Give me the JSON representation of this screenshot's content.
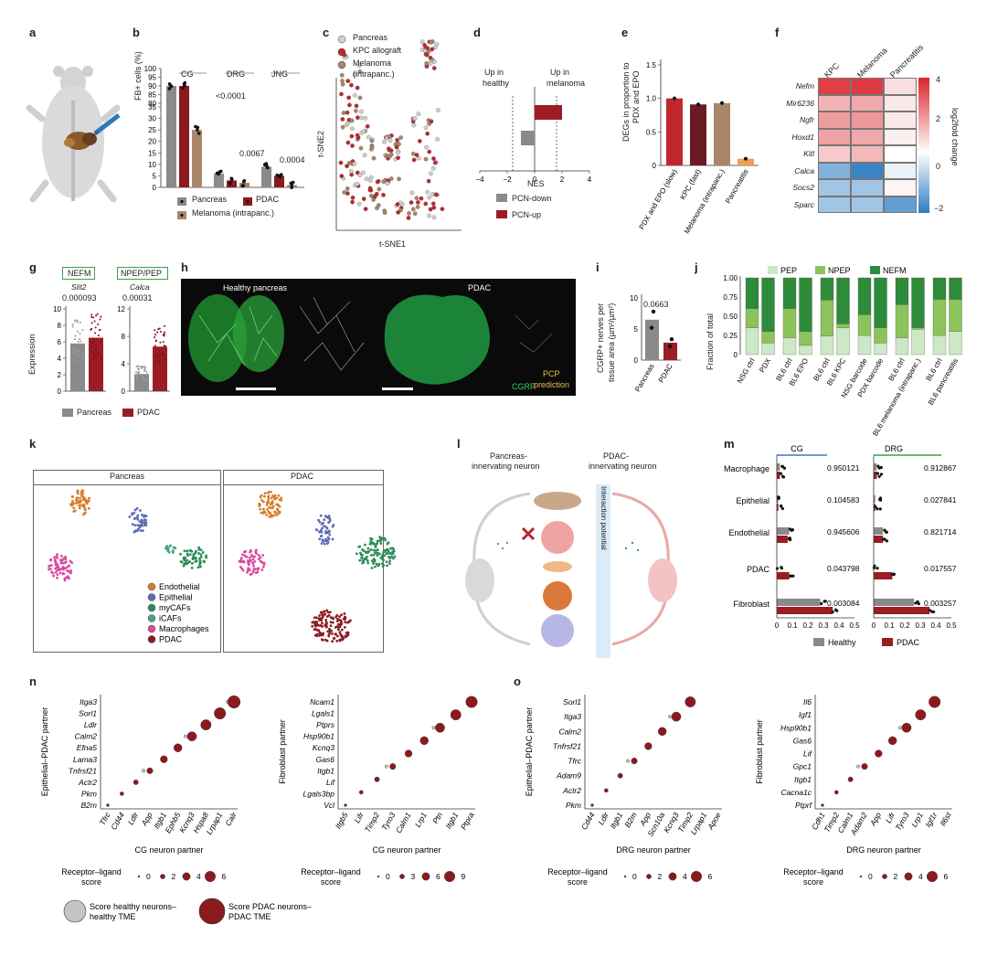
{
  "panel_letters": [
    "a",
    "b",
    "c",
    "d",
    "e",
    "f",
    "g",
    "h",
    "i",
    "j",
    "k",
    "l",
    "m",
    "n",
    "o"
  ],
  "colors": {
    "dark_red": "#8b1a1f",
    "red": "#c0272d",
    "grey": "#8a8a8a",
    "tan": "#a8866a",
    "orange": "#f0a050",
    "green_dark": "#2e8b3a",
    "green_mid": "#8cc35a",
    "green_light": "#cde8c6"
  },
  "panel_b": {
    "ylabel": "FB+ cells (%)",
    "groups": [
      "CG",
      "DRG",
      "JNG"
    ],
    "yticks": [
      "0",
      "5",
      "10",
      "15",
      "20",
      "25",
      "30",
      "35",
      "80",
      "85",
      "90",
      "95",
      "100"
    ],
    "pvals": [
      "<0.0001",
      "0.0067",
      "0.0004"
    ],
    "legend": [
      "Pancreas",
      "PDAC",
      "Melanoma (intrapanc.)"
    ]
  },
  "panel_c": {
    "xlabel": "t-SNE1",
    "ylabel": "t-SNE2",
    "legend": [
      "Pancreas",
      "KPC allograft",
      "Melanoma",
      "(intrapanc.)"
    ]
  },
  "panel_d": {
    "xlabel": "NES",
    "xticks": [
      "−4",
      "−2",
      "0",
      "2",
      "4"
    ],
    "left_label": [
      "Up in",
      "healthy"
    ],
    "right_label": [
      "Up in",
      "melanoma"
    ],
    "legend": [
      "PCN-down",
      "PCN-up"
    ]
  },
  "panel_e": {
    "ylabel": [
      "DEGs in proportion to",
      "PDX and EPO"
    ],
    "yticks": [
      "0",
      "0.5",
      "1.0",
      "1.5"
    ],
    "categories": [
      "PDX and EPO (slow)",
      "KPC (fast)",
      "Melanoma (intrapanc.)",
      "Pancreatitis"
    ]
  },
  "panel_f": {
    "columns": [
      "KPC",
      "Melanoma",
      "Pancreatitis"
    ],
    "rows": [
      "Nefm",
      "Mir6236",
      "Ngfr",
      "Hoxd1",
      "Kitl",
      "Calca",
      "Socs2",
      "Sparc"
    ],
    "scale_label": "log2fold change",
    "scale_ticks": [
      "4",
      "2",
      "0",
      "−2"
    ]
  },
  "panel_g": {
    "ylabel": "Expression",
    "left": {
      "box": "NEFM",
      "gene": "Slit2",
      "p": "0.000093",
      "yticks": [
        "0",
        "2",
        "4",
        "6",
        "8",
        "10"
      ]
    },
    "right": {
      "box": "NPEP/PEP",
      "gene": "Calca",
      "p": "0.00031",
      "yticks": [
        "0",
        "4",
        "8",
        "12"
      ]
    },
    "legend": [
      "Pancreas",
      "PDAC"
    ]
  },
  "panel_h": {
    "left_title": "Healthy pancreas",
    "right_title": "PDAC",
    "cgrp": "CGRP",
    "pcp": [
      "PCP",
      "prediction"
    ]
  },
  "panel_i": {
    "ylabel": [
      "CGRP+ nerves per",
      "tissue area (µm²/µm²)"
    ],
    "yticks": [
      "0",
      "5",
      "10"
    ],
    "p": "0.0663",
    "categories": [
      "Pancreas",
      "PDAC"
    ]
  },
  "panel_j": {
    "ylabel": "Fraction of total",
    "yticks": [
      "0",
      "0.25",
      "0.50",
      "0.75",
      "1.00"
    ],
    "legend": [
      "PEP",
      "NPEP",
      "NEFM"
    ],
    "categories": [
      "NSG ctrl",
      "PDX",
      "BL6 ctrl",
      "BL6 EPO",
      "BL6 ctrl",
      "BL6 KPC",
      "NSG barcode",
      "PDX barcode",
      "BL6 ctrl",
      "BL6 melanoma (intrapanc.)",
      "BL6 ctrl",
      "BL6 pancreatitis"
    ]
  },
  "panel_k": {
    "left_title": "Pancreas",
    "right_title": "PDAC",
    "legend": [
      "Endothelial",
      "Epithelial",
      "myCAFs",
      "iCAFs",
      "Macrophages",
      "PDAC"
    ]
  },
  "panel_l": {
    "left_title": [
      "Pancreas-",
      "innervating neuron"
    ],
    "right_title": [
      "PDAC-",
      "innervating neuron"
    ],
    "gradient": "Interaction potential"
  },
  "panel_m": {
    "headers": [
      "CG",
      "DRG"
    ],
    "rows": [
      "Macrophage",
      "Epithelial",
      "Endothelial",
      "PDAC",
      "Fibroblast"
    ],
    "cg_p": [
      "0.950121",
      "0.104583",
      "0.945606",
      "0.043798",
      "0.003084"
    ],
    "drg_p": [
      "0.912867",
      "0.027841",
      "0.821714",
      "0.017557",
      "0.003257"
    ],
    "xticks": [
      "0",
      "0.1",
      "0.2",
      "0.3",
      "0.4",
      "0.5"
    ],
    "legend": [
      "Healthy",
      "PDAC"
    ]
  },
  "panel_n": {
    "left": {
      "ylabel": "Epithelial–PDAC partner",
      "xlabel": "CG neuron partner",
      "y": [
        "Itga3",
        "Sorl1",
        "Ldlr",
        "Calm2",
        "Efna5",
        "Lama3",
        "Tnfrsf21",
        "Actr2",
        "Pkm",
        "B2m"
      ],
      "x": [
        "Tfrc",
        "Cd44",
        "Ldlr",
        "App",
        "Itgb1",
        "Ephb5",
        "Kcnq3",
        "Hspa8",
        "Lrpap1",
        "Calr"
      ],
      "score_label": [
        "Receptor–ligand",
        "score"
      ],
      "score_ticks": [
        "0",
        "2",
        "4",
        "6"
      ]
    },
    "right": {
      "ylabel": "Fibroblast partner",
      "xlabel": "CG neuron partner",
      "y": [
        "Ncam1",
        "Lgals1",
        "Ptprs",
        "Hsp90b1",
        "Kcnq3",
        "Gas6",
        "Itgb1",
        "Lif",
        "Lgals3bp",
        "Vcl"
      ],
      "x": [
        "Itgb5",
        "Lifr",
        "Timp2",
        "Tyro3",
        "Calm1",
        "Lrp1",
        "Ptn",
        "Itgb1",
        "Ptpra"
      ],
      "score_label": [
        "Receptor–ligand",
        "score"
      ],
      "score_ticks": [
        "0",
        "3",
        "6",
        "9"
      ]
    },
    "legend": [
      [
        "Score healthy neurons–",
        "healthy TME"
      ],
      [
        "Score PDAC neurons–",
        "PDAC TME"
      ]
    ]
  },
  "panel_o": {
    "left": {
      "ylabel": "Epithelial–PDAC partner",
      "xlabel": "DRG neuron partner",
      "y": [
        "Sorl1",
        "Itga3",
        "Calm2",
        "Tnfrsf21",
        "Tfrc",
        "Adam9",
        "Actr2",
        "Pkm"
      ],
      "x": [
        "Cd44",
        "Ldlr",
        "Itgb1",
        "B2m",
        "App",
        "Scn10a",
        "Kcnq3",
        "Timp2",
        "Lrpap1",
        "Apoe"
      ],
      "score_label": [
        "Receptor–ligand",
        "score"
      ],
      "score_ticks": [
        "0",
        "2",
        "4",
        "6"
      ]
    },
    "right": {
      "ylabel": "Fibroblast partner",
      "xlabel": "DRG neuron partner",
      "y": [
        "Il6",
        "Igf1",
        "Hsp90b1",
        "Gas6",
        "Lif",
        "Gpc1",
        "Itgb1",
        "Cacna1c",
        "Ptprf"
      ],
      "x": [
        "Cdh1",
        "Timp2",
        "Calm1",
        "Adam2",
        "App",
        "Lifr",
        "Tyro3",
        "Lrp1",
        "Igf1r",
        "Il6st"
      ],
      "score_label": [
        "Receptor–ligand",
        "score"
      ],
      "score_ticks": [
        "0",
        "2",
        "4",
        "6"
      ]
    }
  },
  "chart_data": [
    {
      "type": "bar",
      "panel": "b",
      "categories": [
        "CG",
        "DRG",
        "JNG"
      ],
      "series": [
        {
          "name": "Pancreas",
          "values": [
            90,
            6,
            9
          ]
        },
        {
          "name": "PDAC",
          "values": [
            90,
            3,
            5
          ]
        },
        {
          "name": "Melanoma (intrapanc.)",
          "values": [
            25,
            2,
            1
          ]
        }
      ]
    },
    {
      "type": "bar",
      "panel": "d",
      "categories": [
        "PCN-down",
        "PCN-up"
      ],
      "values": [
        -1,
        2
      ]
    },
    {
      "type": "bar",
      "panel": "e",
      "categories": [
        "PDX and EPO (slow)",
        "KPC (fast)",
        "Melanoma (intrapanc.)",
        "Pancreatitis"
      ],
      "values": [
        1.0,
        0.91,
        0.93,
        0.1
      ],
      "ylim": [
        0,
        1.5
      ]
    },
    {
      "type": "heatmap",
      "panel": "f",
      "columns": [
        "KPC",
        "Melanoma",
        "Pancreatitis"
      ],
      "rows": [
        "Nefm",
        "Mir6236",
        "Ngfr",
        "Hoxd1",
        "Kitl",
        "Calca",
        "Socs2",
        "Sparc"
      ],
      "values": [
        [
          3.5,
          3.6,
          0.6
        ],
        [
          1.4,
          1.6,
          0.4
        ],
        [
          1.8,
          1.9,
          0.4
        ],
        [
          1.7,
          1.6,
          0.3
        ],
        [
          1.0,
          1.3,
          0.0
        ],
        [
          -1.2,
          -1.9,
          -0.2
        ],
        [
          -0.9,
          -0.9,
          0.2
        ],
        [
          -0.9,
          -0.9,
          -1.5
        ]
      ]
    },
    {
      "type": "bar",
      "panel": "i",
      "categories": [
        "Pancreas",
        "PDAC"
      ],
      "values": [
        6.5,
        2.8
      ],
      "ylim": [
        0,
        10
      ]
    },
    {
      "type": "bar",
      "panel": "j",
      "categories": [
        "NSG ctrl",
        "PDX",
        "BL6 ctrl",
        "BL6 EPO",
        "BL6 ctrl",
        "BL6 KPC",
        "NSG barcode",
        "PDX barcode",
        "BL6 ctrl",
        "BL6 melanoma (intrapanc.)",
        "BL6 ctrl",
        "BL6 pancreatitis"
      ],
      "series": [
        {
          "name": "PEP",
          "values": [
            0.35,
            0.15,
            0.22,
            0.12,
            0.24,
            0.35,
            0.25,
            0.15,
            0.22,
            0.33,
            0.25,
            0.3
          ]
        },
        {
          "name": "NPEP",
          "values": [
            0.25,
            0.15,
            0.38,
            0.18,
            0.47,
            0.05,
            0.27,
            0.2,
            0.43,
            0.02,
            0.47,
            0.42
          ]
        },
        {
          "name": "NEFM",
          "values": [
            0.4,
            0.7,
            0.4,
            0.7,
            0.29,
            0.6,
            0.48,
            0.65,
            0.35,
            0.65,
            0.28,
            0.28
          ]
        }
      ],
      "ylim": [
        0,
        1
      ]
    },
    {
      "type": "bar",
      "panel": "m",
      "categories": [
        "Macrophage",
        "Epithelial",
        "Endothelial",
        "PDAC",
        "Fibroblast"
      ],
      "series": [
        {
          "name": "Healthy",
          "cg": [
            0.02,
            0.01,
            0.08,
            0.0,
            0.28
          ],
          "drg": [
            0.02,
            0.01,
            0.06,
            0.0,
            0.26
          ]
        },
        {
          "name": "PDAC",
          "cg": [
            0.02,
            0.01,
            0.07,
            0.08,
            0.36
          ],
          "drg": [
            0.02,
            0.01,
            0.06,
            0.12,
            0.36
          ]
        }
      ],
      "xlim": [
        0,
        0.5
      ]
    }
  ]
}
